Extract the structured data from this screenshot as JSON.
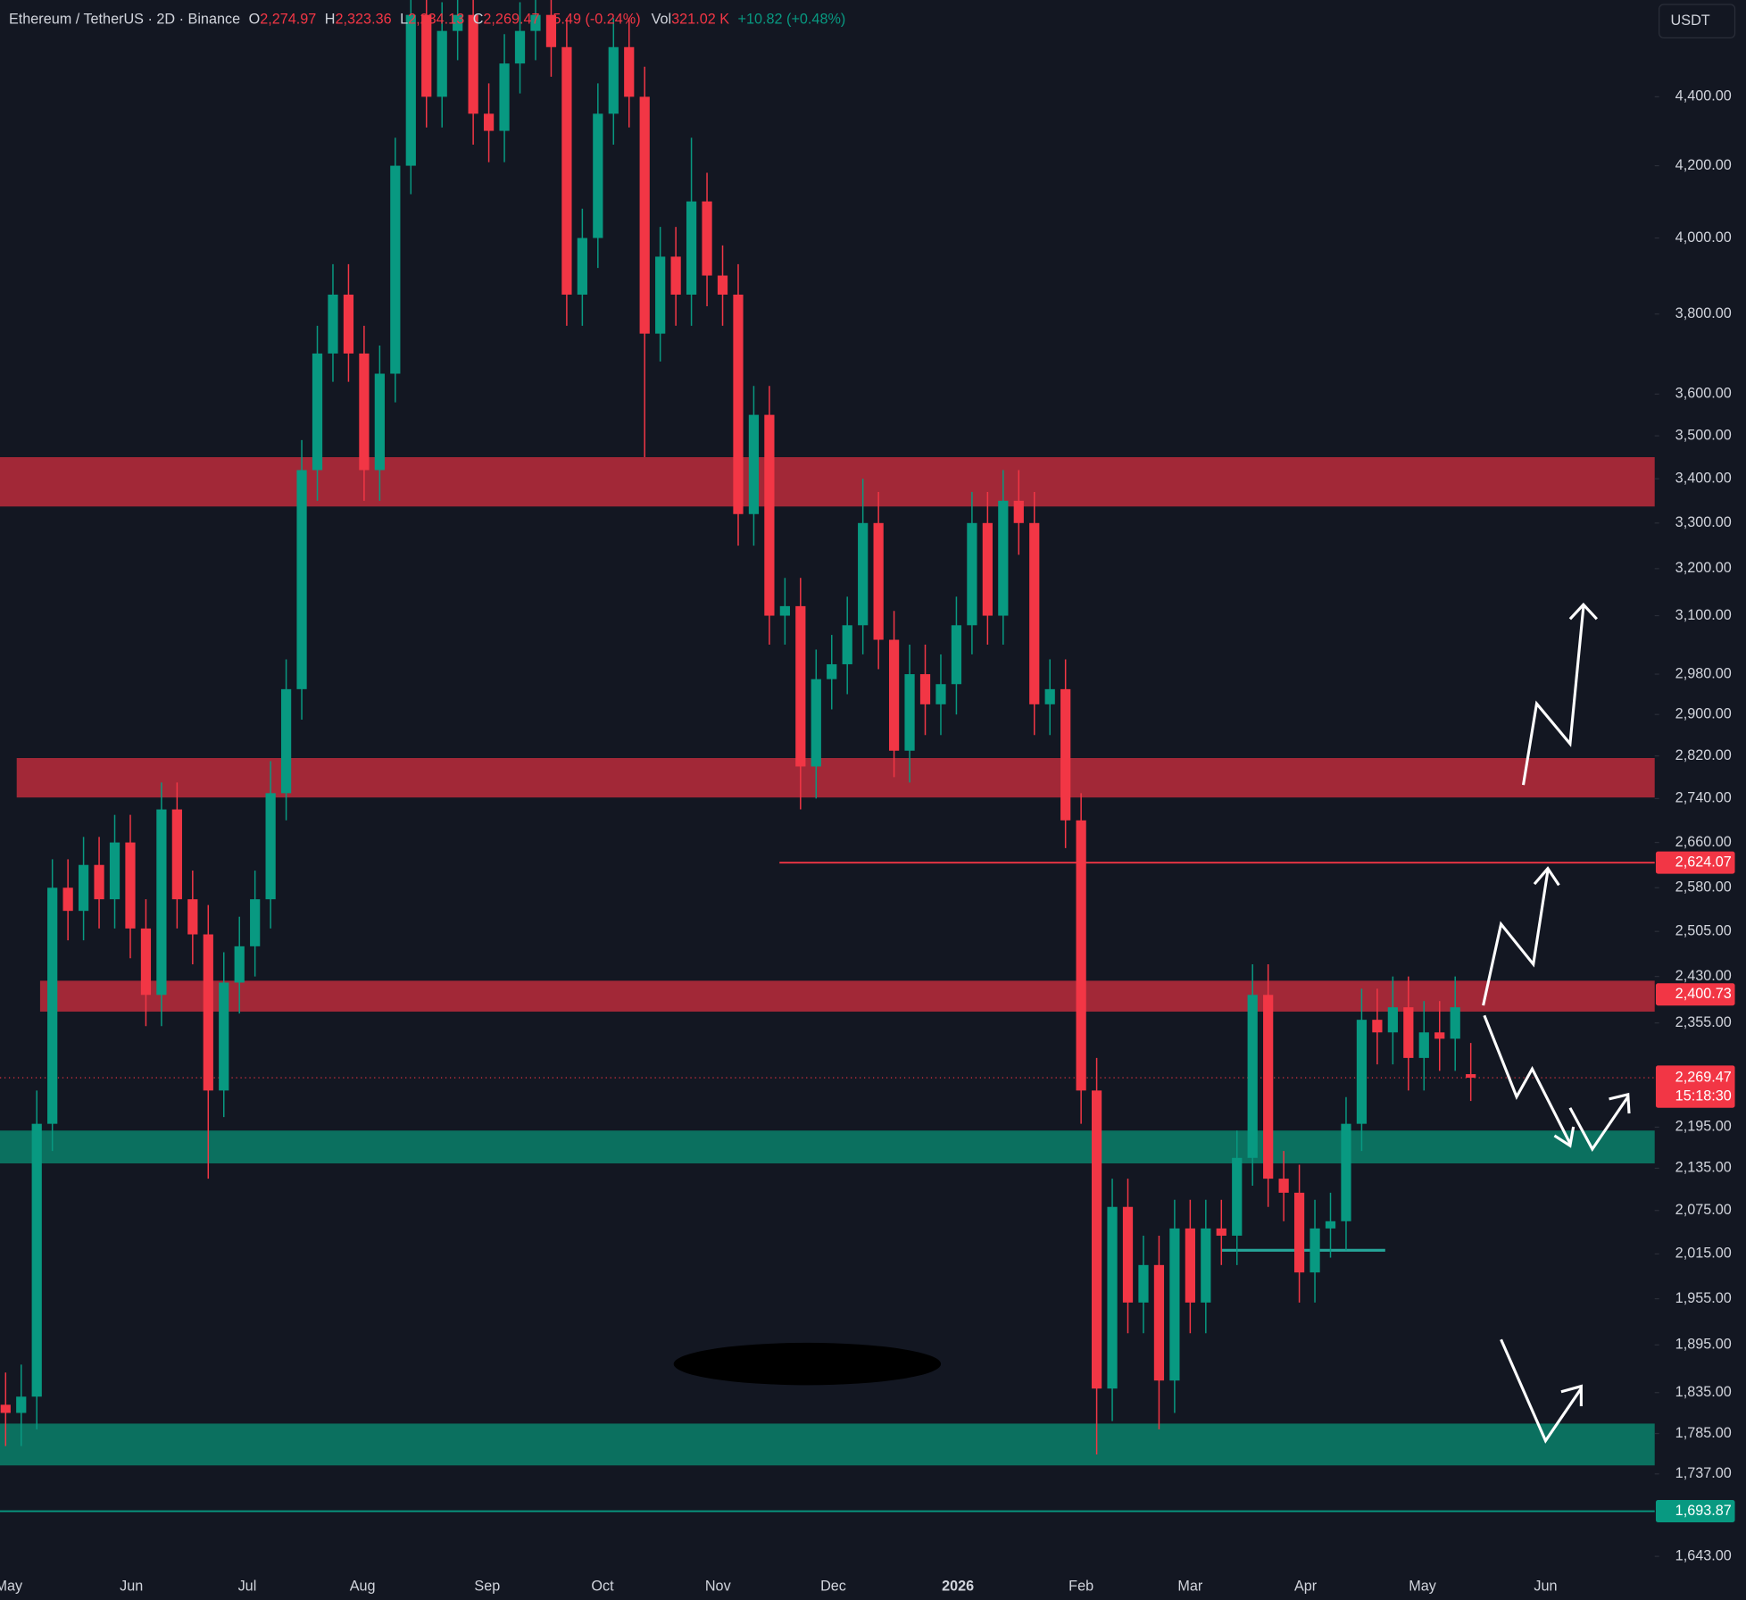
{
  "header": {
    "symbol": "Ethereum / TetherUS · 2D · Binance",
    "o_label": "O",
    "open": "2,274.97",
    "h_label": "H",
    "high": "2,323.36",
    "l_label": "L",
    "low": "2,234.13",
    "c_label": "C",
    "close": "2,269.47",
    "change": "-5.49 (-0.24%)",
    "vol_label": "Vol",
    "volume": "321.02 K",
    "vol_change": "+10.82 (+0.48%)",
    "currency": "USDT"
  },
  "chart_data": {
    "type": "candlestick",
    "log_scale": true,
    "up_color": "#089981",
    "down_color": "#f23645",
    "ylim": [
      1628,
      4697
    ],
    "yticks": [
      {
        "value": 4400,
        "label": "4,400.00"
      },
      {
        "value": 4200,
        "label": "4,200.00"
      },
      {
        "value": 4000,
        "label": "4,000.00"
      },
      {
        "value": 3800,
        "label": "3,800.00"
      },
      {
        "value": 3600,
        "label": "3,600.00"
      },
      {
        "value": 3500,
        "label": "3,500.00"
      },
      {
        "value": 3400,
        "label": "3,400.00"
      },
      {
        "value": 3300,
        "label": "3,300.00"
      },
      {
        "value": 3200,
        "label": "3,200.00"
      },
      {
        "value": 3100,
        "label": "3,100.00"
      },
      {
        "value": 2980,
        "label": "2,980.00"
      },
      {
        "value": 2900,
        "label": "2,900.00"
      },
      {
        "value": 2820,
        "label": "2,820.00"
      },
      {
        "value": 2740,
        "label": "2,740.00"
      },
      {
        "value": 2660,
        "label": "2,660.00"
      },
      {
        "value": 2580,
        "label": "2,580.00"
      },
      {
        "value": 2505,
        "label": "2,505.00"
      },
      {
        "value": 2430,
        "label": "2,430.00"
      },
      {
        "value": 2355,
        "label": "2,355.00"
      },
      {
        "value": 2195,
        "label": "2,195.00"
      },
      {
        "value": 2135,
        "label": "2,135.00"
      },
      {
        "value": 2075,
        "label": "2,075.00"
      },
      {
        "value": 2015,
        "label": "2,015.00"
      },
      {
        "value": 1955,
        "label": "1,955.00"
      },
      {
        "value": 1895,
        "label": "1,895.00"
      },
      {
        "value": 1835,
        "label": "1,835.00"
      },
      {
        "value": 1785,
        "label": "1,785.00"
      },
      {
        "value": 1737,
        "label": "1,737.00"
      },
      {
        "value": 1643,
        "label": "1,643.00"
      }
    ],
    "xlim": [
      -0.36,
      105.8
    ],
    "xticks": [
      {
        "value": 0.2,
        "label": "May"
      },
      {
        "value": 8.07,
        "label": "Jun"
      },
      {
        "value": 15.5,
        "label": "Jul"
      },
      {
        "value": 22.9,
        "label": "Aug"
      },
      {
        "value": 30.9,
        "label": "Sep"
      },
      {
        "value": 38.3,
        "label": "Oct"
      },
      {
        "value": 45.7,
        "label": "Nov"
      },
      {
        "value": 53.1,
        "label": "Dec"
      },
      {
        "value": 61.1,
        "label": "2026"
      },
      {
        "value": 69,
        "label": "Feb"
      },
      {
        "value": 76,
        "label": "Mar"
      },
      {
        "value": 83.4,
        "label": "Apr"
      },
      {
        "value": 90.9,
        "label": "May"
      },
      {
        "value": 98.8,
        "label": "Jun"
      }
    ],
    "open": [
      1820,
      1810,
      1830,
      2200,
      2580,
      2540,
      2620,
      2560,
      2660,
      2510,
      2400,
      2720,
      2560,
      2500,
      2250,
      2420,
      2480,
      2560,
      2750,
      2950,
      3420,
      3700,
      3850,
      3700,
      3420,
      3650,
      4200,
      4650,
      4400,
      4600,
      4650,
      4350,
      4300,
      4500,
      4600,
      4650,
      4550,
      3850,
      4000,
      4350,
      4550,
      4400,
      3750,
      3950,
      3850,
      4100,
      3900,
      3850,
      3320,
      3550,
      3100,
      3120,
      2800,
      2970,
      3000,
      3080,
      3300,
      3050,
      2830,
      2980,
      2920,
      2960,
      3080,
      3300,
      3100,
      3350,
      3300,
      2920,
      2950,
      2700,
      2250,
      1840,
      2080,
      1950,
      2000,
      1850,
      2050,
      1950,
      2050,
      2040,
      2150,
      2400,
      2120,
      2100,
      1990,
      2050,
      2060,
      2200,
      2360,
      2340,
      2380,
      2300,
      2340,
      2330,
      2274.97
    ],
    "high": [
      1860,
      1870,
      2250,
      2630,
      2630,
      2670,
      2670,
      2710,
      2710,
      2560,
      2770,
      2770,
      2610,
      2550,
      2470,
      2530,
      2610,
      2810,
      3010,
      3490,
      3770,
      3930,
      3930,
      3770,
      3720,
      4280,
      4740,
      4740,
      4690,
      4740,
      4740,
      4440,
      4590,
      4690,
      4740,
      4740,
      4640,
      4080,
      4440,
      4640,
      4640,
      4490,
      4030,
      4030,
      4280,
      4180,
      3980,
      3930,
      3620,
      3620,
      3180,
      3180,
      3030,
      3060,
      3140,
      3400,
      3370,
      3110,
      3040,
      3040,
      3020,
      3140,
      3370,
      3370,
      3420,
      3420,
      3370,
      3010,
      3010,
      2750,
      2300,
      2120,
      2120,
      2040,
      2040,
      2090,
      2090,
      2090,
      2090,
      2190,
      2450,
      2450,
      2160,
      2140,
      2090,
      2100,
      2240,
      2410,
      2410,
      2430,
      2430,
      2390,
      2390,
      2430,
      2323.36
    ],
    "low": [
      1770,
      1770,
      1790,
      2160,
      2490,
      2490,
      2510,
      2510,
      2460,
      2350,
      2350,
      2510,
      2450,
      2120,
      2210,
      2370,
      2430,
      2510,
      2700,
      2890,
      3350,
      3630,
      3630,
      3350,
      3350,
      3580,
      4120,
      4310,
      4310,
      4510,
      4260,
      4210,
      4210,
      4410,
      4510,
      4460,
      3770,
      3770,
      3920,
      4260,
      4310,
      3450,
      3680,
      3770,
      3770,
      3820,
      3770,
      3250,
      3250,
      3040,
      3040,
      2720,
      2740,
      2910,
      2940,
      3020,
      2990,
      2780,
      2770,
      2860,
      2860,
      2900,
      3020,
      3040,
      3040,
      3230,
      2860,
      2860,
      2650,
      2200,
      1760,
      1800,
      1910,
      1910,
      1790,
      1810,
      1910,
      1910,
      2000,
      2000,
      2110,
      2080,
      2060,
      1950,
      1950,
      2010,
      2020,
      2160,
      2290,
      2290,
      2250,
      2250,
      2280,
      2280,
      2234.13
    ],
    "close": [
      1810,
      1830,
      2200,
      2580,
      2540,
      2620,
      2560,
      2660,
      2510,
      2400,
      2720,
      2560,
      2500,
      2250,
      2420,
      2480,
      2560,
      2750,
      2950,
      3420,
      3700,
      3850,
      3700,
      3420,
      3650,
      4200,
      4650,
      4400,
      4600,
      4650,
      4350,
      4300,
      4500,
      4600,
      4650,
      4550,
      3850,
      4000,
      4350,
      4550,
      4400,
      3750,
      3950,
      3850,
      4100,
      3900,
      3850,
      3320,
      3550,
      3100,
      3120,
      2800,
      2970,
      3000,
      3080,
      3300,
      3050,
      2830,
      2980,
      2920,
      2960,
      3080,
      3300,
      3100,
      3350,
      3300,
      2920,
      2950,
      2700,
      2250,
      1840,
      2080,
      1950,
      2000,
      1850,
      2050,
      1950,
      2050,
      2040,
      2150,
      2400,
      2120,
      2100,
      1990,
      2050,
      2060,
      2200,
      2360,
      2340,
      2380,
      2300,
      2340,
      2330,
      2380,
      2269.47
    ],
    "zones": [
      {
        "low": 3337,
        "high": 3450,
        "color": "#b22a3a"
      },
      {
        "low": 2742,
        "high": 2816,
        "color": "#b22a3a"
      },
      {
        "low": 2373,
        "high": 2423,
        "color": "#b22a3a"
      },
      {
        "low": 2142,
        "high": 2190,
        "color": "#0b7a66"
      },
      {
        "low": 1747,
        "high": 1797,
        "color": "#0b7a66"
      }
    ],
    "price_lines": [
      {
        "value": 2624.07,
        "label": "2,624.07",
        "color": "#f23645"
      },
      {
        "value": 2400.73,
        "label": "2,400.73",
        "color": "#f23645"
      },
      {
        "value": 1693.87,
        "label": "1,693.87",
        "color": "#089981"
      }
    ],
    "segments": [
      {
        "value": 2020,
        "color": "#26a69a"
      }
    ],
    "current_price": {
      "value": 2269.47,
      "label": "2,269.47",
      "countdown": "15:18:30",
      "color": "#f23645"
    }
  }
}
